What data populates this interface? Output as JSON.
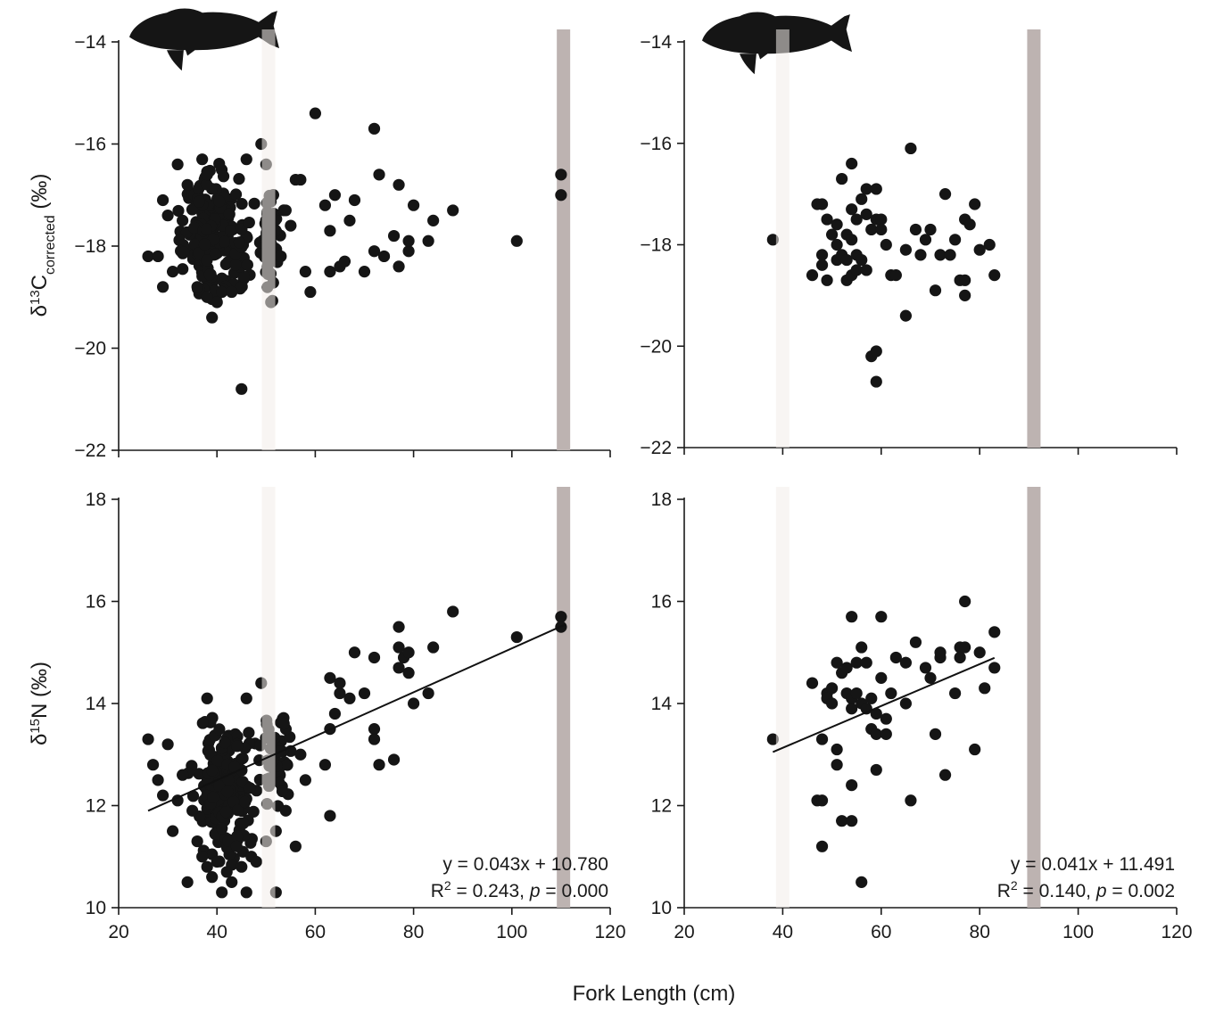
{
  "figure": {
    "x_axis_title": "Fork Length (cm)"
  },
  "colors": {
    "points": "#151515",
    "points_in_light_band": "#9a9593",
    "light_band": "#f3ecea",
    "dark_band": "#bdb3b1",
    "axes": "#1a1a1a",
    "fish_silhouette": "#151515"
  },
  "chart_data": [
    {
      "id": "top-left",
      "type": "scatter",
      "icon": "fish-silhouette-icon",
      "ylabel_parts": [
        "δ",
        "13",
        "C",
        "corrected",
        " (‰)"
      ],
      "xlim": [
        20,
        120
      ],
      "ylim": [
        -22,
        -14
      ],
      "x_ticks": [
        20,
        40,
        60,
        80,
        100,
        120
      ],
      "y_ticks": [
        -22,
        -20,
        -18,
        -16,
        -14
      ],
      "show_x_tick_labels": false,
      "bands": [
        {
          "x": 50.5,
          "color": "light"
        },
        {
          "x": 110.5,
          "color": "dark"
        }
      ],
      "fit": null,
      "annotation": null,
      "seed": 11,
      "clusters": [
        {
          "n": 190,
          "x": [
            30,
            50
          ],
          "y": [
            -19.2,
            -16.3
          ]
        },
        {
          "n": 50,
          "x": [
            48,
            54
          ],
          "y": [
            -19.1,
            -16.8
          ]
        }
      ],
      "points": [
        [
          26,
          -18.2
        ],
        [
          28,
          -18.2
        ],
        [
          29,
          -18.8
        ],
        [
          29,
          -17.1
        ],
        [
          30,
          -17.4
        ],
        [
          31,
          -18.5
        ],
        [
          32,
          -16.4
        ],
        [
          33,
          -17.5
        ],
        [
          34,
          -16.8
        ],
        [
          36,
          -18.8
        ],
        [
          37,
          -16.3
        ],
        [
          38,
          -16.6
        ],
        [
          38,
          -19.0
        ],
        [
          39,
          -19.4
        ],
        [
          40,
          -19.1
        ],
        [
          41,
          -18.9
        ],
        [
          43,
          -18.9
        ],
        [
          45,
          -20.8
        ],
        [
          46,
          -16.3
        ],
        [
          49,
          -16.0
        ],
        [
          50,
          -16.4
        ],
        [
          51,
          -19.1
        ],
        [
          53,
          -18.2
        ],
        [
          54,
          -17.3
        ],
        [
          55,
          -17.6
        ],
        [
          56,
          -16.7
        ],
        [
          57,
          -16.7
        ],
        [
          58,
          -18.5
        ],
        [
          59,
          -18.9
        ],
        [
          60,
          -15.4
        ],
        [
          62,
          -17.2
        ],
        [
          63,
          -17.7
        ],
        [
          63,
          -18.5
        ],
        [
          64,
          -17.0
        ],
        [
          65,
          -18.4
        ],
        [
          66,
          -18.3
        ],
        [
          67,
          -17.5
        ],
        [
          68,
          -17.1
        ],
        [
          70,
          -18.5
        ],
        [
          72,
          -15.7
        ],
        [
          72,
          -18.1
        ],
        [
          73,
          -16.6
        ],
        [
          74,
          -18.2
        ],
        [
          76,
          -17.8
        ],
        [
          77,
          -16.8
        ],
        [
          77,
          -18.4
        ],
        [
          79,
          -18.1
        ],
        [
          79,
          -17.9
        ],
        [
          80,
          -17.2
        ],
        [
          83,
          -17.9
        ],
        [
          84,
          -17.5
        ],
        [
          88,
          -17.3
        ],
        [
          101,
          -17.9
        ],
        [
          110,
          -16.6
        ],
        [
          110,
          -17.0
        ]
      ]
    },
    {
      "id": "top-right",
      "type": "scatter",
      "icon": "fish-silhouette-icon",
      "ylabel_parts": null,
      "xlim": [
        20,
        120
      ],
      "ylim": [
        -22,
        -14
      ],
      "x_ticks": [
        20,
        40,
        60,
        80,
        100,
        120
      ],
      "y_ticks": [
        -22,
        -20,
        -18,
        -16,
        -14
      ],
      "show_x_tick_labels": false,
      "bands": [
        {
          "x": 40,
          "color": "light"
        },
        {
          "x": 91,
          "color": "dark"
        }
      ],
      "fit": null,
      "annotation": null,
      "seed": 0,
      "clusters": [],
      "points": [
        [
          38,
          -17.9
        ],
        [
          46,
          -18.6
        ],
        [
          47,
          -17.2
        ],
        [
          48,
          -17.2
        ],
        [
          48,
          -18.2
        ],
        [
          48,
          -18.4
        ],
        [
          49,
          -18.7
        ],
        [
          49,
          -17.5
        ],
        [
          50,
          -17.8
        ],
        [
          51,
          -18.0
        ],
        [
          51,
          -18.3
        ],
        [
          51,
          -17.6
        ],
        [
          52,
          -16.7
        ],
        [
          52,
          -18.2
        ],
        [
          53,
          -18.7
        ],
        [
          53,
          -18.3
        ],
        [
          53,
          -17.8
        ],
        [
          54,
          -16.4
        ],
        [
          54,
          -17.3
        ],
        [
          54,
          -17.9
        ],
        [
          54,
          -18.6
        ],
        [
          55,
          -18.2
        ],
        [
          55,
          -18.5
        ],
        [
          55,
          -17.5
        ],
        [
          56,
          -17.1
        ],
        [
          56,
          -18.3
        ],
        [
          57,
          -16.9
        ],
        [
          57,
          -17.4
        ],
        [
          57,
          -18.5
        ],
        [
          58,
          -20.2
        ],
        [
          58,
          -17.7
        ],
        [
          59,
          -20.7
        ],
        [
          59,
          -20.1
        ],
        [
          59,
          -16.9
        ],
        [
          59,
          -17.5
        ],
        [
          60,
          -17.5
        ],
        [
          60,
          -17.7
        ],
        [
          61,
          -18.0
        ],
        [
          62,
          -18.6
        ],
        [
          63,
          -18.6
        ],
        [
          65,
          -19.4
        ],
        [
          65,
          -18.1
        ],
        [
          66,
          -16.1
        ],
        [
          67,
          -17.7
        ],
        [
          68,
          -18.2
        ],
        [
          69,
          -17.9
        ],
        [
          70,
          -17.7
        ],
        [
          71,
          -18.9
        ],
        [
          72,
          -18.2
        ],
        [
          73,
          -17.0
        ],
        [
          74,
          -18.2
        ],
        [
          75,
          -17.9
        ],
        [
          76,
          -18.7
        ],
        [
          77,
          -19.0
        ],
        [
          77,
          -18.7
        ],
        [
          77,
          -17.5
        ],
        [
          78,
          -17.6
        ],
        [
          79,
          -17.2
        ],
        [
          80,
          -18.1
        ],
        [
          82,
          -18.0
        ],
        [
          83,
          -18.6
        ]
      ]
    },
    {
      "id": "bottom-left",
      "type": "scatter",
      "icon": null,
      "ylabel_parts": [
        "δ",
        "15",
        "N",
        "",
        " (‰)"
      ],
      "xlim": [
        20,
        120
      ],
      "ylim": [
        10,
        18
      ],
      "x_ticks": [
        20,
        40,
        60,
        80,
        100,
        120
      ],
      "y_ticks": [
        10,
        12,
        14,
        16,
        18
      ],
      "show_x_tick_labels": true,
      "bands": [
        {
          "x": 50.5,
          "color": "light"
        },
        {
          "x": 110.5,
          "color": "dark"
        }
      ],
      "fit": {
        "slope": 0.043,
        "intercept": 10.78,
        "x_range": [
          26,
          111
        ]
      },
      "annotation": {
        "equation": "y = 0.043x + 10.780",
        "r2_prefix": "R",
        "r2_sup": "2",
        "r2_eq": " = 0.243, ",
        "p_label": "p",
        "p_value": " = 0.000"
      },
      "seed": 23,
      "clusters": [
        {
          "n": 200,
          "x": [
            33,
            50
          ],
          "y": [
            10.8,
            13.9
          ]
        },
        {
          "n": 45,
          "x": [
            48,
            56
          ],
          "y": [
            11.8,
            14.1
          ]
        }
      ],
      "points": [
        [
          26,
          13.3
        ],
        [
          27,
          12.8
        ],
        [
          28,
          12.5
        ],
        [
          29,
          12.2
        ],
        [
          30,
          13.2
        ],
        [
          31,
          11.5
        ],
        [
          32,
          12.1
        ],
        [
          33,
          12.6
        ],
        [
          34,
          10.5
        ],
        [
          35,
          11.9
        ],
        [
          36,
          11.3
        ],
        [
          37,
          11.0
        ],
        [
          38,
          10.8
        ],
        [
          38,
          14.1
        ],
        [
          39,
          10.6
        ],
        [
          40,
          10.9
        ],
        [
          41,
          10.3
        ],
        [
          42,
          10.7
        ],
        [
          43,
          10.5
        ],
        [
          44,
          11.2
        ],
        [
          45,
          10.8
        ],
        [
          46,
          10.3
        ],
        [
          46,
          14.1
        ],
        [
          47,
          11.0
        ],
        [
          48,
          10.9
        ],
        [
          49,
          14.4
        ],
        [
          50,
          11.3
        ],
        [
          52,
          10.3
        ],
        [
          52,
          11.5
        ],
        [
          54,
          11.9
        ],
        [
          56,
          11.2
        ],
        [
          57,
          13.0
        ],
        [
          58,
          12.5
        ],
        [
          62,
          12.8
        ],
        [
          63,
          14.5
        ],
        [
          63,
          13.5
        ],
        [
          63,
          11.8
        ],
        [
          64,
          13.8
        ],
        [
          65,
          14.2
        ],
        [
          65,
          14.4
        ],
        [
          67,
          14.1
        ],
        [
          68,
          15.0
        ],
        [
          70,
          14.2
        ],
        [
          72,
          13.5
        ],
        [
          72,
          14.9
        ],
        [
          72,
          13.3
        ],
        [
          73,
          12.8
        ],
        [
          76,
          12.9
        ],
        [
          77,
          15.5
        ],
        [
          77,
          15.1
        ],
        [
          77,
          14.7
        ],
        [
          78,
          14.9
        ],
        [
          79,
          14.6
        ],
        [
          79,
          15.0
        ],
        [
          80,
          14.0
        ],
        [
          83,
          14.2
        ],
        [
          84,
          15.1
        ],
        [
          88,
          15.8
        ],
        [
          101,
          15.3
        ],
        [
          110,
          15.7
        ],
        [
          110,
          15.5
        ]
      ]
    },
    {
      "id": "bottom-right",
      "type": "scatter",
      "icon": null,
      "ylabel_parts": null,
      "xlim": [
        20,
        120
      ],
      "ylim": [
        10,
        18
      ],
      "x_ticks": [
        20,
        40,
        60,
        80,
        100,
        120
      ],
      "y_ticks": [
        10,
        12,
        14,
        16,
        18
      ],
      "show_x_tick_labels": true,
      "bands": [
        {
          "x": 40,
          "color": "light"
        },
        {
          "x": 91,
          "color": "dark"
        }
      ],
      "fit": {
        "slope": 0.041,
        "intercept": 11.491,
        "x_range": [
          38,
          83
        ]
      },
      "annotation": {
        "equation": "y = 0.041x + 11.491",
        "r2_prefix": "R",
        "r2_sup": "2",
        "r2_eq": " = 0.140, ",
        "p_label": "p",
        "p_value": " = 0.002"
      },
      "seed": 0,
      "clusters": [],
      "points": [
        [
          38,
          13.3
        ],
        [
          46,
          14.4
        ],
        [
          47,
          12.1
        ],
        [
          48,
          12.1
        ],
        [
          48,
          13.3
        ],
        [
          48,
          11.2
        ],
        [
          49,
          14.2
        ],
        [
          49,
          14.1
        ],
        [
          50,
          14.3
        ],
        [
          50,
          14.0
        ],
        [
          51,
          13.1
        ],
        [
          51,
          12.8
        ],
        [
          51,
          14.8
        ],
        [
          52,
          11.7
        ],
        [
          52,
          14.6
        ],
        [
          53,
          14.7
        ],
        [
          53,
          14.2
        ],
        [
          54,
          15.7
        ],
        [
          54,
          14.1
        ],
        [
          54,
          13.9
        ],
        [
          54,
          12.4
        ],
        [
          54,
          11.7
        ],
        [
          55,
          14.8
        ],
        [
          55,
          14.2
        ],
        [
          56,
          10.5
        ],
        [
          56,
          15.1
        ],
        [
          56,
          14.0
        ],
        [
          57,
          14.8
        ],
        [
          57,
          13.9
        ],
        [
          58,
          13.5
        ],
        [
          58,
          14.1
        ],
        [
          59,
          12.7
        ],
        [
          59,
          13.4
        ],
        [
          59,
          13.8
        ],
        [
          60,
          15.7
        ],
        [
          60,
          14.5
        ],
        [
          61,
          13.4
        ],
        [
          61,
          13.7
        ],
        [
          62,
          14.2
        ],
        [
          63,
          14.9
        ],
        [
          65,
          14.0
        ],
        [
          65,
          14.8
        ],
        [
          66,
          12.1
        ],
        [
          67,
          15.2
        ],
        [
          69,
          14.7
        ],
        [
          70,
          14.5
        ],
        [
          71,
          13.4
        ],
        [
          72,
          14.9
        ],
        [
          72,
          15.0
        ],
        [
          73,
          12.6
        ],
        [
          75,
          14.2
        ],
        [
          76,
          15.1
        ],
        [
          76,
          14.9
        ],
        [
          77,
          15.1
        ],
        [
          77,
          16.0
        ],
        [
          79,
          13.1
        ],
        [
          80,
          15.0
        ],
        [
          81,
          14.3
        ],
        [
          83,
          15.4
        ],
        [
          83,
          14.7
        ]
      ]
    }
  ]
}
